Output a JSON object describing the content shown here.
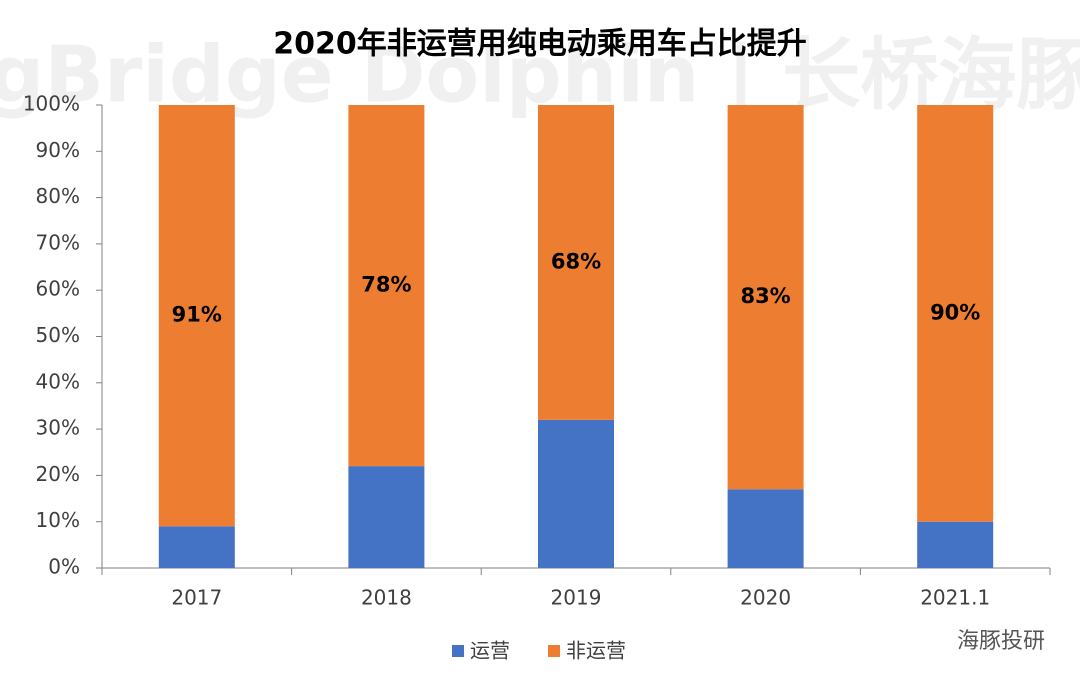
{
  "chart_data": {
    "type": "stacked_bar",
    "title": "2020年非运营用纯电动乘用车占比提升",
    "watermark": "LongBridge Dolphin | 长桥海豚投研",
    "badge": "海豚投研",
    "categories": [
      "2017",
      "2018",
      "2019",
      "2020",
      "2021.1"
    ],
    "series": [
      {
        "name": "运营",
        "color": "#4472c4",
        "values": [
          9,
          22,
          32,
          17,
          10
        ]
      },
      {
        "name": "非运营",
        "color": "#ed7d31",
        "values": [
          91,
          78,
          68,
          83,
          90
        ],
        "value_labels": [
          "91%",
          "78%",
          "68%",
          "83%",
          "90%"
        ]
      }
    ],
    "ylim": [
      0,
      100
    ],
    "yticks": [
      {
        "value": 0,
        "label": "0%"
      },
      {
        "value": 10,
        "label": "10%"
      },
      {
        "value": 20,
        "label": "20%"
      },
      {
        "value": 30,
        "label": "30%"
      },
      {
        "value": 40,
        "label": "40%"
      },
      {
        "value": 50,
        "label": "50%"
      },
      {
        "value": 60,
        "label": "60%"
      },
      {
        "value": 70,
        "label": "70%"
      },
      {
        "value": 80,
        "label": "80%"
      },
      {
        "value": 90,
        "label": "90%"
      },
      {
        "value": 100,
        "label": "100%"
      }
    ],
    "grid": false,
    "legend": "bottom"
  }
}
